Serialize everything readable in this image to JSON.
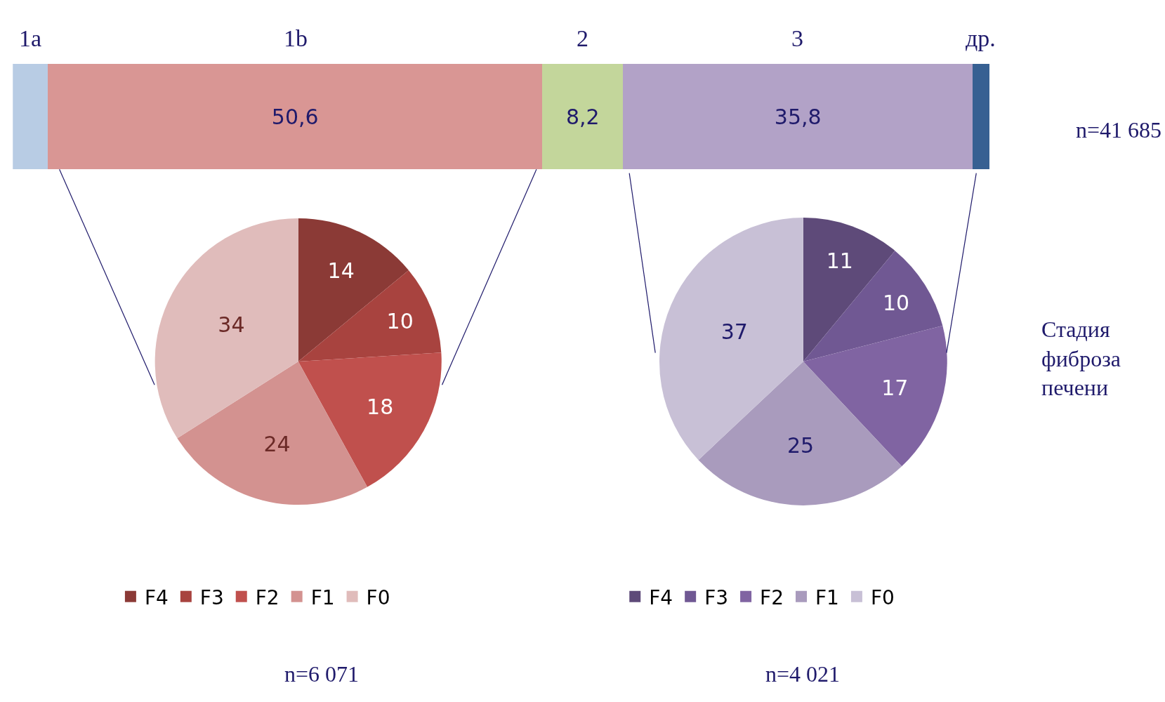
{
  "chart_data": [
    {
      "type": "bar",
      "orientation": "horizontal",
      "stacked": true,
      "categories": [
        null
      ],
      "xlim": [
        0,
        100
      ],
      "tick_labels": false,
      "series": [
        {
          "name": "1a",
          "color": "#b8cce4",
          "values": [
            3.6
          ],
          "value_labels": [
            null
          ]
        },
        {
          "name": "1b",
          "color": "#d99694",
          "values": [
            50.6
          ],
          "value_labels": [
            "50,6"
          ]
        },
        {
          "name": "2",
          "color": "#c3d69b",
          "values": [
            8.2
          ],
          "value_labels": [
            "8,2"
          ]
        },
        {
          "name": "3",
          "color": "#b2a2c7",
          "values": [
            35.8
          ],
          "value_labels": [
            "35,8"
          ]
        },
        {
          "name": "др.",
          "color": "#376092",
          "values": [
            1.7
          ],
          "value_labels": [
            null
          ]
        }
      ],
      "annotations": [
        "n=41 685"
      ]
    },
    {
      "type": "pie",
      "categories": [
        "F4",
        "F3",
        "F2",
        "F1",
        "F0"
      ],
      "values": [
        14,
        10,
        18,
        24,
        34
      ],
      "colors": [
        "#8b3a36",
        "#a8433f",
        "#c0504d",
        "#d39290",
        "#e0bcbb"
      ],
      "data_labels": true,
      "legend": "bottom",
      "annotations": [
        "n=6 071"
      ]
    },
    {
      "type": "pie",
      "categories": [
        "F4",
        "F3",
        "F2",
        "F1",
        "F0"
      ],
      "values": [
        11,
        10,
        17,
        25,
        37
      ],
      "colors": [
        "#5e4a79",
        "#705893",
        "#8064a2",
        "#a99bbd",
        "#c8c0d6"
      ],
      "data_labels": true,
      "legend": "bottom",
      "annotations": [
        "n=4 021",
        "Стадия фиброза печени"
      ]
    }
  ]
}
